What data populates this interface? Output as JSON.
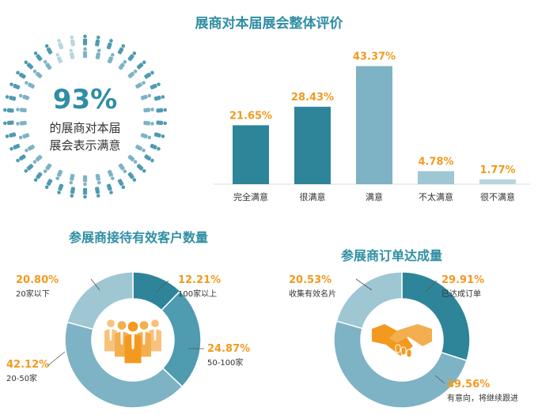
{
  "colors": {
    "dark": "#2e8599",
    "mid": "#4f9bb0",
    "light": "#7db3c4",
    "pale": "#9fc6d3",
    "faint": "#b8d6df",
    "accent": "#f29a1f",
    "title": "#2f8ea3"
  },
  "circle_stat": {
    "value": "93%",
    "caption_line1": "的展商对本届",
    "caption_line2": "展会表示满意",
    "icon": "people-ring-icon",
    "satisfied_fraction": 0.93
  },
  "chart_data": [
    {
      "type": "bar",
      "title": "展商对本届展会整体评价",
      "categories": [
        "完全满意",
        "很满意",
        "满意",
        "不太满意",
        "很不满意"
      ],
      "values": [
        21.65,
        28.43,
        43.37,
        4.78,
        1.77
      ],
      "value_labels": [
        "21.65%",
        "28.43%",
        "43.37%",
        "4.78%",
        "1.77%"
      ],
      "ylim": [
        0,
        45
      ]
    },
    {
      "type": "pie",
      "title": "参展商接待有效客户数量",
      "categories": [
        "100家以上",
        "50-100家",
        "20-50家",
        "20家以下"
      ],
      "values": [
        12.21,
        24.87,
        42.12,
        20.8
      ],
      "value_labels": [
        "12.21%",
        "24.87%",
        "42.12%",
        "20.80%"
      ],
      "center_icon": "business-people-icon"
    },
    {
      "type": "pie",
      "title": "参展商订单达成量",
      "categories": [
        "已达成订单",
        "有意向，将继续跟进",
        "收集有效名片"
      ],
      "values": [
        29.91,
        49.56,
        20.53
      ],
      "value_labels": [
        "29.91%",
        "49.56%",
        "20.53%"
      ],
      "center_icon": "handshake-icon"
    }
  ]
}
